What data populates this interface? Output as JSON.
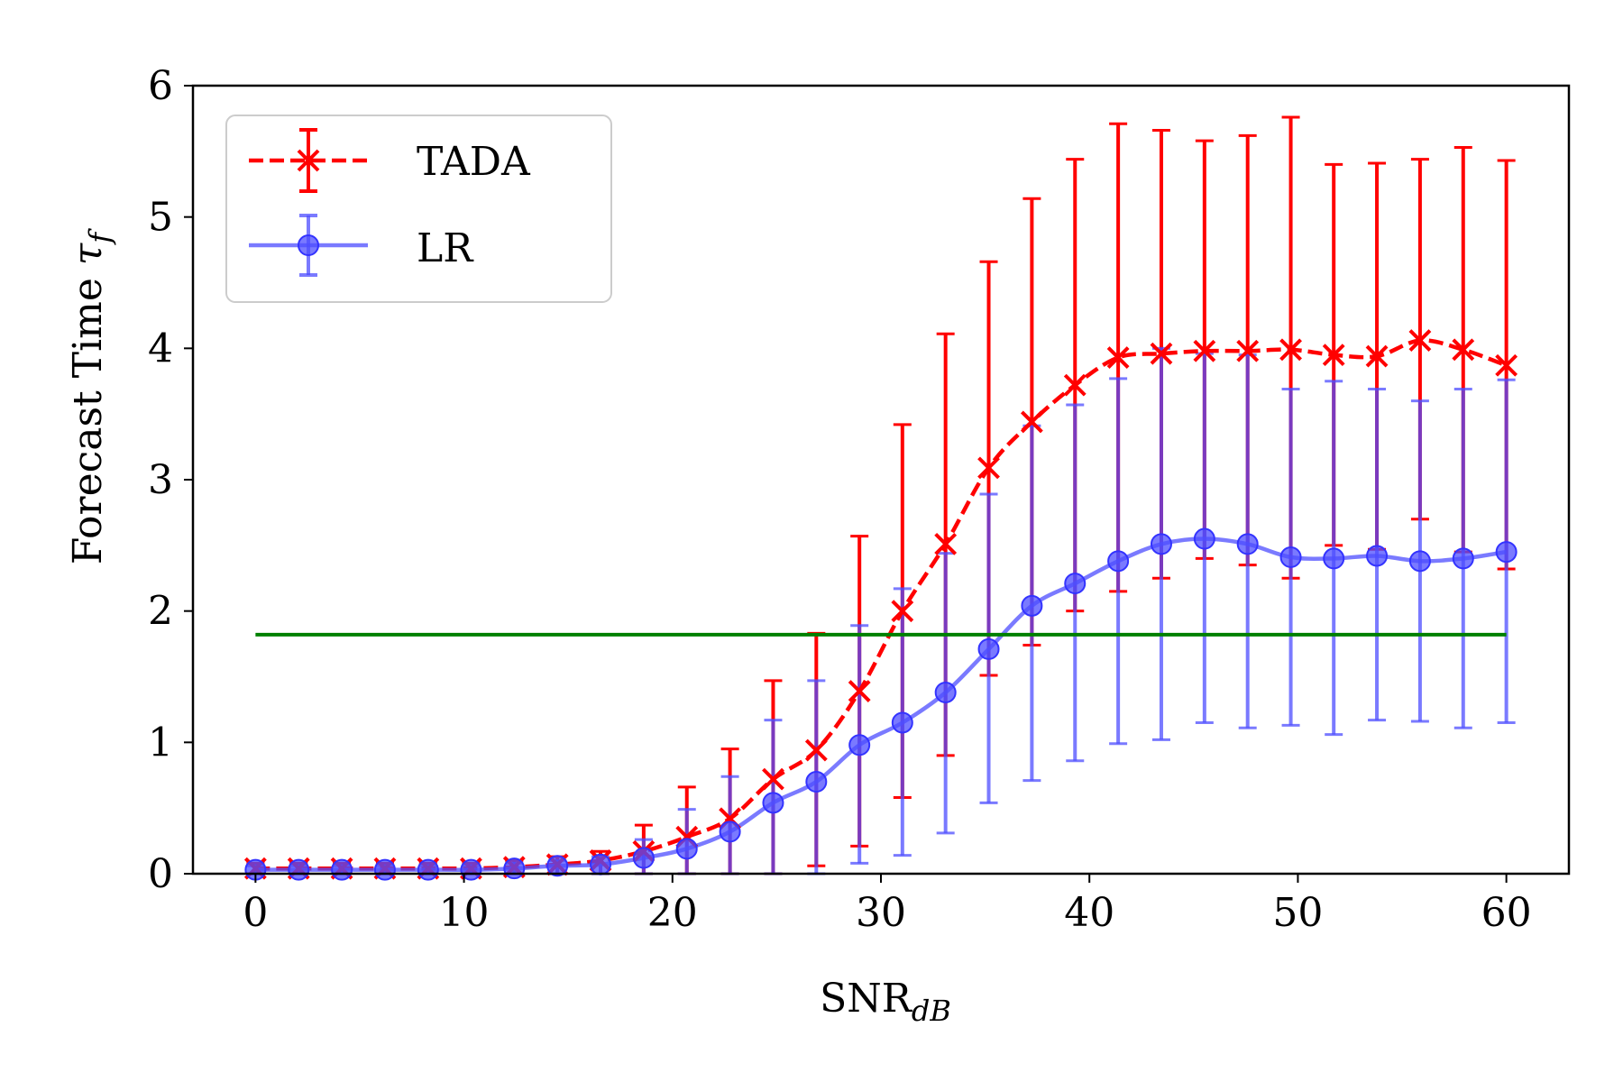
{
  "chart_data": {
    "type": "line",
    "title": "",
    "xlabel_main": "SNR",
    "xlabel_sub": "dB",
    "ylabel_main": "Forecast Time ",
    "ylabel_symbol": "τ",
    "ylabel_sub": "f",
    "xlim": [
      -3,
      63
    ],
    "ylim": [
      0,
      6
    ],
    "xticks": [
      "0",
      "10",
      "20",
      "30",
      "40",
      "50",
      "60"
    ],
    "yticks": [
      "0",
      "1",
      "2",
      "3",
      "4",
      "5",
      "6"
    ],
    "grid": false,
    "legend_position": "top-left",
    "x": [
      0.0,
      2.07,
      4.14,
      6.21,
      8.28,
      10.34,
      12.41,
      14.48,
      16.55,
      18.62,
      20.69,
      22.76,
      24.83,
      26.9,
      28.97,
      31.03,
      33.1,
      35.17,
      37.24,
      39.31,
      41.38,
      43.45,
      45.52,
      47.59,
      49.66,
      51.72,
      53.79,
      55.86,
      57.93,
      60.0
    ],
    "series": [
      {
        "name": "TADA",
        "color": "#ff0000",
        "style": "dashed",
        "marker": "x",
        "values": [
          0.04,
          0.04,
          0.04,
          0.04,
          0.04,
          0.04,
          0.05,
          0.07,
          0.1,
          0.17,
          0.28,
          0.42,
          0.72,
          0.94,
          1.39,
          2.0,
          2.51,
          3.09,
          3.44,
          3.72,
          3.93,
          3.96,
          3.98,
          3.98,
          3.99,
          3.95,
          3.94,
          4.06,
          3.99,
          3.87
        ],
        "err_low": [
          0.0,
          0.0,
          0.0,
          0.0,
          0.0,
          0.0,
          0.0,
          0.0,
          0.0,
          0.0,
          0.0,
          0.0,
          0.0,
          0.06,
          0.21,
          0.58,
          0.9,
          1.51,
          1.74,
          2.0,
          2.15,
          2.25,
          2.4,
          2.35,
          2.25,
          2.5,
          2.47,
          2.7,
          2.45,
          2.32
        ],
        "err_high": [
          0.08,
          0.08,
          0.08,
          0.08,
          0.08,
          0.08,
          0.1,
          0.13,
          0.17,
          0.37,
          0.66,
          0.95,
          1.47,
          1.83,
          2.57,
          3.42,
          4.11,
          4.66,
          5.14,
          5.44,
          5.71,
          5.66,
          5.58,
          5.62,
          5.76,
          5.4,
          5.41,
          5.44,
          5.53,
          5.43
        ]
      },
      {
        "name": "LR",
        "color": "#4d4dff",
        "style": "solid",
        "marker": "o",
        "values": [
          0.03,
          0.03,
          0.03,
          0.03,
          0.03,
          0.03,
          0.04,
          0.06,
          0.07,
          0.12,
          0.19,
          0.32,
          0.54,
          0.7,
          0.98,
          1.15,
          1.38,
          1.71,
          2.04,
          2.21,
          2.38,
          2.51,
          2.55,
          2.51,
          2.41,
          2.4,
          2.42,
          2.38,
          2.4,
          2.45
        ],
        "err_low": [
          0.0,
          0.0,
          0.0,
          0.0,
          0.0,
          0.0,
          0.0,
          0.0,
          0.0,
          0.0,
          0.0,
          0.0,
          0.0,
          0.0,
          0.08,
          0.14,
          0.31,
          0.54,
          0.71,
          0.86,
          0.99,
          1.02,
          1.15,
          1.11,
          1.13,
          1.06,
          1.17,
          1.16,
          1.11,
          1.15
        ],
        "err_high": [
          0.06,
          0.06,
          0.06,
          0.06,
          0.06,
          0.06,
          0.08,
          0.1,
          0.13,
          0.26,
          0.49,
          0.74,
          1.17,
          1.47,
          1.89,
          2.17,
          2.44,
          2.89,
          3.41,
          3.57,
          3.77,
          4.0,
          3.96,
          3.95,
          3.69,
          3.75,
          3.69,
          3.6,
          3.69,
          3.76
        ]
      }
    ],
    "reference_line": {
      "color": "#008000",
      "y": 1.82,
      "x_start": 0,
      "x_end": 60
    }
  }
}
